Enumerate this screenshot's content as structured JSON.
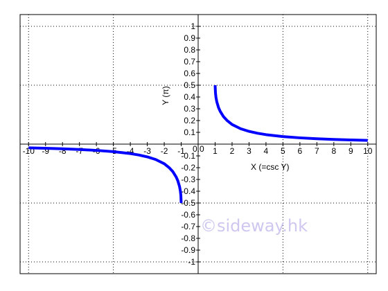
{
  "chart_data": {
    "type": "line",
    "title": "",
    "xlabel": "X (=csc Y)",
    "ylabel": "Y (π)",
    "xlim": [
      -10.5,
      10.5
    ],
    "ylim": [
      -1.1,
      1.1
    ],
    "x_ticks": [
      -10,
      -9,
      -8,
      -7,
      -6,
      -5,
      -4,
      -3,
      -2,
      -1,
      1,
      2,
      3,
      4,
      5,
      6,
      7,
      8,
      9,
      10
    ],
    "y_ticks": [
      -1,
      -0.9,
      -0.8,
      -0.7,
      -0.6,
      -0.5,
      -0.4,
      -0.3,
      -0.2,
      -0.1,
      0.1,
      0.2,
      0.3,
      0.4,
      0.5,
      0.6,
      0.7,
      0.8,
      0.9,
      1
    ],
    "x_tick_labels": [
      "-10",
      "-9",
      "-8",
      "-7",
      "-6",
      "-5",
      "-4",
      "-3",
      "-2",
      "-1",
      "1",
      "2",
      "3",
      "4",
      "5",
      "6",
      "7",
      "8",
      "9",
      "10"
    ],
    "y_tick_labels": [
      "-1",
      "-0.9",
      "-0.8",
      "-0.7",
      "-0.6",
      "-0.5",
      "-0.4",
      "-0.3",
      "-0.2",
      "-0.1",
      "0.1",
      "0.2",
      "0.3",
      "0.4",
      "0.5",
      "0.6",
      "0.7",
      "0.8",
      "0.9",
      "1"
    ],
    "origin_label": "0.0",
    "grid": "dotted",
    "grid_x": [
      -10,
      -5,
      0,
      5,
      10
    ],
    "grid_y": [
      -1,
      -0.5,
      0,
      0.5,
      1
    ],
    "series": [
      {
        "color": "#0000ff",
        "x": [
          1,
          1.02,
          1.05,
          1.1,
          1.2,
          1.3,
          1.5,
          1.7,
          2,
          2.5,
          3,
          3.5,
          4,
          5,
          6,
          7,
          8,
          9,
          10
        ],
        "y": [
          0.5,
          0.4363,
          0.3972,
          0.359,
          0.311,
          0.2785,
          0.2323,
          0.2013,
          0.1667,
          0.131,
          0.1082,
          0.0922,
          0.0804,
          0.0641,
          0.0533,
          0.0456,
          0.0399,
          0.0354,
          0.0319
        ]
      },
      {
        "color": "#0000ff",
        "x": [
          -1,
          -1.02,
          -1.05,
          -1.1,
          -1.2,
          -1.3,
          -1.5,
          -1.7,
          -2,
          -2.5,
          -3,
          -3.5,
          -4,
          -5,
          -6,
          -7,
          -8,
          -9,
          -10
        ],
        "y": [
          -0.5,
          -0.4363,
          -0.3972,
          -0.359,
          -0.311,
          -0.2785,
          -0.2323,
          -0.2013,
          -0.1667,
          -0.131,
          -0.1082,
          -0.0922,
          -0.0804,
          -0.0641,
          -0.0533,
          -0.0456,
          -0.0399,
          -0.0354,
          -0.0319
        ]
      }
    ]
  },
  "watermark": "©sideway.hk",
  "colors": {
    "curve": "#0000ff",
    "axes": "#000000",
    "grid": "#000000",
    "watermark": "#cfc7f0"
  }
}
